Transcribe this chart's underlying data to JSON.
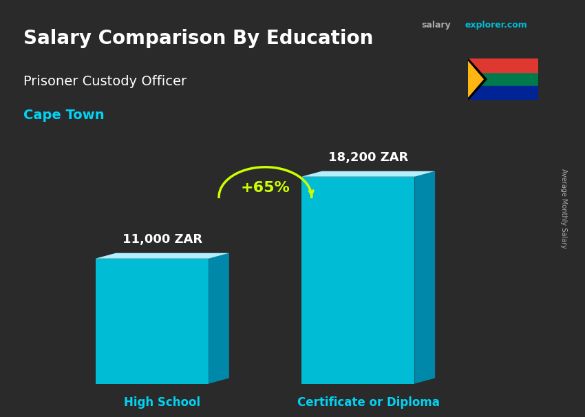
{
  "title_main": "Salary Comparison By Education",
  "title_sub": "Prisoner Custody Officer",
  "city": "Cape Town",
  "categories": [
    "High School",
    "Certificate or Diploma"
  ],
  "values": [
    11000,
    18200
  ],
  "value_labels": [
    "11,000 ZAR",
    "18,200 ZAR"
  ],
  "pct_change": "+65%",
  "bar_color_top": "#00d4f5",
  "bar_color_bottom": "#0099cc",
  "bar_color_face": "#00bcd4",
  "bg_color": "#2a2a2a",
  "title_color": "#ffffff",
  "subtitle_color": "#ffffff",
  "city_color": "#00d4f5",
  "value_color": "#ffffff",
  "label_color": "#00d4f5",
  "pct_color": "#ccff00",
  "arrow_color": "#ccff00",
  "side_label": "Average Monthly Salary",
  "website_salary": "salary",
  "website_explorer": "explorer.com",
  "bar_positions": [
    0.25,
    0.65
  ],
  "bar_width": 0.22,
  "ylim_max": 22000
}
